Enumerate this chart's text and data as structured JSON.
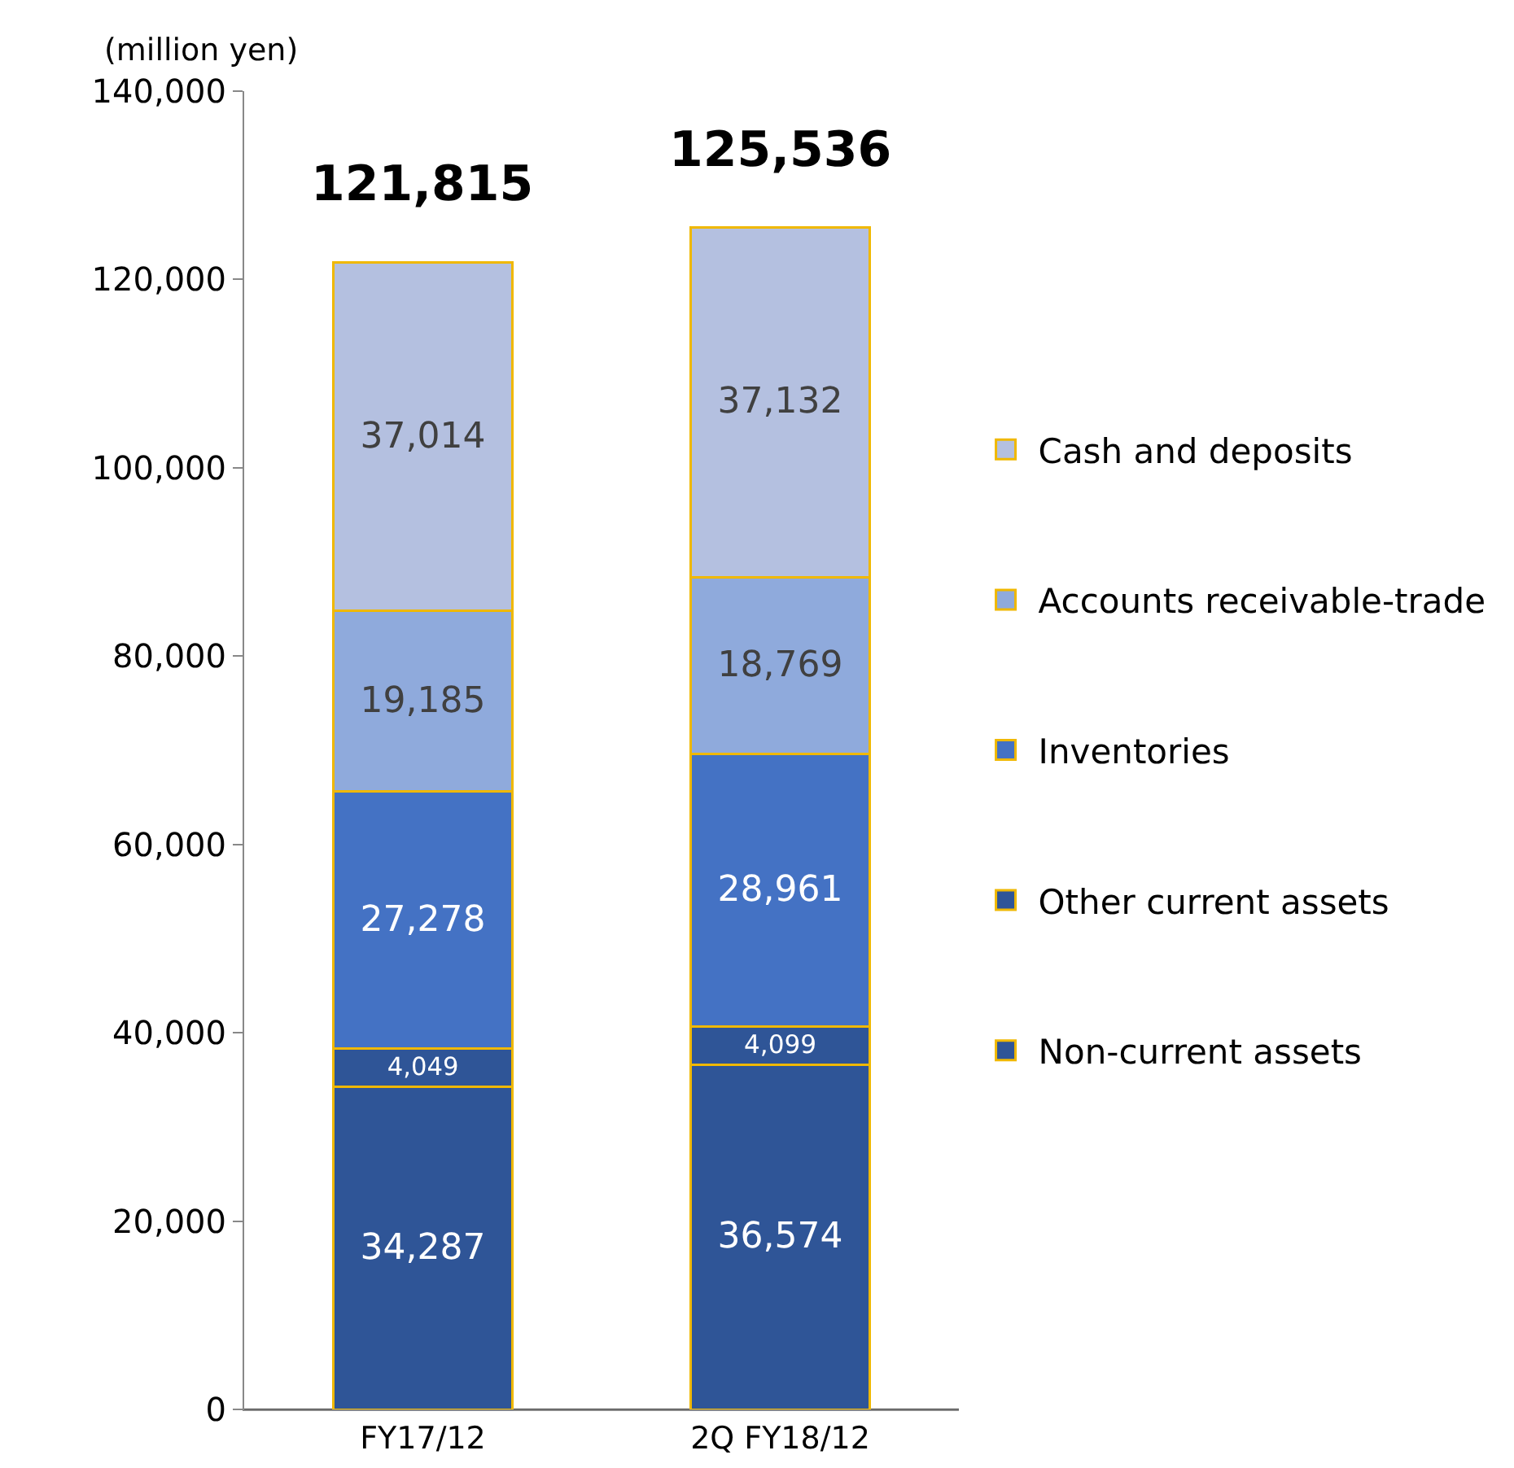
{
  "chart_data": {
    "type": "bar",
    "stacked": true,
    "ylabel": "(million yen)",
    "categories": [
      "FY17/12",
      "2Q FY18/12"
    ],
    "series": [
      {
        "name": "Non-current assets",
        "color": "#2f5597",
        "values": [
          34287,
          36574
        ],
        "value_labels": [
          "34,287",
          "36,574"
        ]
      },
      {
        "name": "Other current assets",
        "color": "#2f5597",
        "values": [
          4049,
          4099
        ],
        "value_labels": [
          "4,049",
          "4,099"
        ]
      },
      {
        "name": "Inventories",
        "color": "#4472c4",
        "values": [
          27278,
          28961
        ],
        "value_labels": [
          "27,278",
          "28,961"
        ]
      },
      {
        "name": "Accounts receivable-trade",
        "color": "#8faadc",
        "values": [
          19185,
          18769
        ],
        "value_labels": [
          "19,185",
          "18,769"
        ]
      },
      {
        "name": "Cash and deposits",
        "color": "#b4c0e0",
        "values": [
          37014,
          37132
        ],
        "value_labels": [
          "37,014",
          "37,132"
        ]
      }
    ],
    "totals": [
      "121,815",
      "125,536"
    ],
    "ylim": [
      0,
      140000
    ],
    "yticks": [
      0,
      {
        "value": 20000,
        "label": "20,000"
      },
      {
        "value": 40000,
        "label": "40,000"
      },
      {
        "value": 60000,
        "label": "60,000"
      },
      {
        "value": 80000,
        "label": "80,000"
      },
      {
        "value": 100000,
        "label": "100,000"
      },
      {
        "value": 120000,
        "label": "120,000"
      },
      {
        "value": 140000,
        "label": "140,000"
      }
    ],
    "grid": false,
    "legend": "right"
  }
}
